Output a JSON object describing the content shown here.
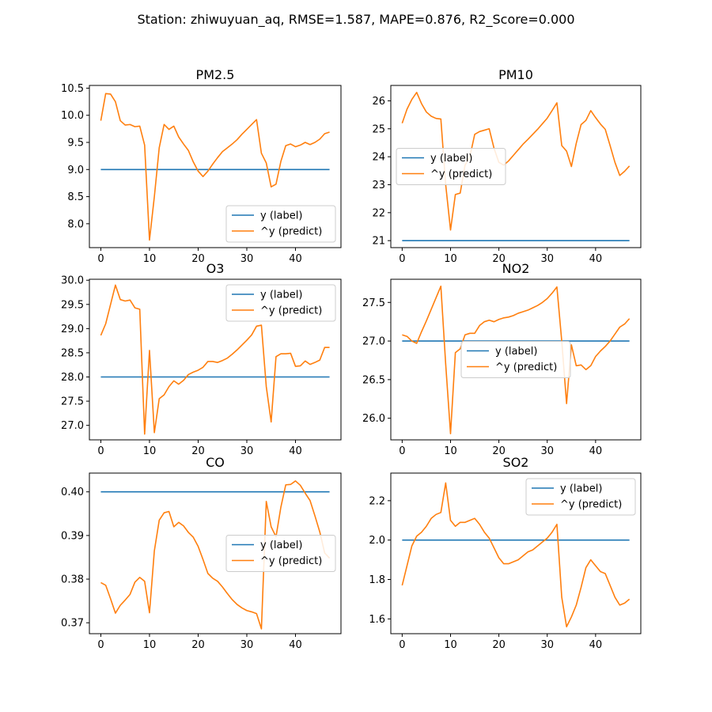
{
  "figure": {
    "title": "Station: zhiwuyuan_aq, RMSE=1.587, MAPE=0.876, R2_Score=0.000"
  },
  "colors": {
    "label": "#1f77b4",
    "predict": "#ff7f0e"
  },
  "chart_data": [
    {
      "type": "line",
      "title": "PM2.5",
      "xlim": [
        -2.35,
        49.35
      ],
      "ylim": [
        7.56,
        10.55
      ],
      "xticks": [
        0,
        10,
        20,
        30,
        40
      ],
      "yticks": [
        8.0,
        8.5,
        9.0,
        9.5,
        10.0,
        10.5
      ],
      "ydecimals": 1,
      "legend": "lower right",
      "series": [
        {
          "name": "y (label)",
          "color": "#1f77b4",
          "x": [
            0,
            47
          ],
          "y": [
            9.0,
            9.0
          ]
        },
        {
          "name": "^y (predict)",
          "color": "#ff7f0e",
          "y": [
            9.9,
            10.4,
            10.39,
            10.25,
            9.9,
            9.82,
            9.83,
            9.79,
            9.8,
            9.45,
            7.7,
            8.5,
            9.4,
            9.83,
            9.74,
            9.8,
            9.6,
            9.47,
            9.35,
            9.14,
            8.97,
            8.87,
            8.97,
            9.1,
            9.22,
            9.33,
            9.4,
            9.47,
            9.55,
            9.65,
            9.74,
            9.83,
            9.92,
            9.3,
            9.12,
            8.68,
            8.73,
            9.15,
            9.44,
            9.47,
            9.42,
            9.45,
            9.5,
            9.46,
            9.5,
            9.56,
            9.66,
            9.69
          ]
        }
      ]
    },
    {
      "type": "line",
      "title": "PM10",
      "xlim": [
        -2.35,
        49.35
      ],
      "ylim": [
        20.75,
        26.55
      ],
      "xticks": [
        0,
        10,
        20,
        30,
        40
      ],
      "yticks": [
        21,
        22,
        23,
        24,
        25,
        26
      ],
      "ydecimals": 0,
      "legend": "center left",
      "series": [
        {
          "name": "y (label)",
          "color": "#1f77b4",
          "x": [
            0,
            47
          ],
          "y": [
            21.0,
            21.0
          ]
        },
        {
          "name": "^y (predict)",
          "color": "#ff7f0e",
          "y": [
            25.2,
            25.7,
            26.05,
            26.3,
            25.9,
            25.6,
            25.45,
            25.37,
            25.35,
            23.0,
            21.38,
            22.65,
            22.7,
            23.7,
            24.0,
            24.8,
            24.9,
            24.95,
            25.0,
            24.3,
            23.8,
            23.7,
            23.85,
            24.05,
            24.25,
            24.45,
            24.62,
            24.8,
            24.98,
            25.18,
            25.38,
            25.65,
            25.93,
            24.4,
            24.2,
            23.65,
            24.48,
            25.15,
            25.3,
            25.65,
            25.4,
            25.17,
            24.98,
            24.4,
            23.8,
            23.33,
            23.48,
            23.67
          ]
        }
      ]
    },
    {
      "type": "line",
      "title": "O3",
      "xlim": [
        -2.35,
        49.35
      ],
      "ylim": [
        26.7,
        30.02
      ],
      "xticks": [
        0,
        10,
        20,
        30,
        40
      ],
      "yticks": [
        27.0,
        27.5,
        28.0,
        28.5,
        29.0,
        29.5,
        30.0
      ],
      "ydecimals": 1,
      "legend": "upper right",
      "series": [
        {
          "name": "y (label)",
          "color": "#1f77b4",
          "x": [
            0,
            47
          ],
          "y": [
            28.0,
            28.0
          ]
        },
        {
          "name": "^y (predict)",
          "color": "#ff7f0e",
          "y": [
            28.86,
            29.1,
            29.5,
            29.9,
            29.6,
            29.57,
            29.59,
            29.43,
            29.4,
            26.82,
            28.55,
            26.85,
            27.55,
            27.63,
            27.8,
            27.92,
            27.85,
            27.93,
            28.05,
            28.1,
            28.14,
            28.2,
            28.32,
            28.32,
            28.3,
            28.34,
            28.39,
            28.47,
            28.56,
            28.66,
            28.76,
            28.87,
            29.05,
            29.07,
            27.8,
            27.07,
            28.42,
            28.48,
            28.48,
            28.49,
            28.22,
            28.23,
            28.33,
            28.26,
            28.3,
            28.35,
            28.61,
            28.61
          ]
        }
      ]
    },
    {
      "type": "line",
      "title": "NO2",
      "xlim": [
        -2.35,
        49.35
      ],
      "ylim": [
        25.72,
        27.8
      ],
      "xticks": [
        0,
        10,
        20,
        30,
        40
      ],
      "yticks": [
        26.0,
        26.5,
        27.0,
        27.5
      ],
      "ydecimals": 1,
      "legend": "center",
      "series": [
        {
          "name": "y (label)",
          "color": "#1f77b4",
          "x": [
            0,
            47
          ],
          "y": [
            27.0,
            27.0
          ]
        },
        {
          "name": "^y (predict)",
          "color": "#ff7f0e",
          "y": [
            27.08,
            27.06,
            27.0,
            26.97,
            27.12,
            27.26,
            27.41,
            27.56,
            27.71,
            26.7,
            25.8,
            26.85,
            26.9,
            27.08,
            27.1,
            27.1,
            27.2,
            27.25,
            27.27,
            27.25,
            27.28,
            27.3,
            27.31,
            27.33,
            27.36,
            27.38,
            27.4,
            27.43,
            27.46,
            27.5,
            27.55,
            27.62,
            27.7,
            27.0,
            26.19,
            26.95,
            26.68,
            26.69,
            26.63,
            26.68,
            26.8,
            26.87,
            26.93,
            27.0,
            27.09,
            27.18,
            27.22,
            27.29
          ]
        }
      ]
    },
    {
      "type": "line",
      "title": "CO",
      "xlim": [
        -2.35,
        49.35
      ],
      "ylim": [
        0.3675,
        0.4043
      ],
      "xticks": [
        0,
        10,
        20,
        30,
        40
      ],
      "yticks": [
        0.37,
        0.38,
        0.39,
        0.4
      ],
      "ydecimals": 2,
      "legend": "center right",
      "series": [
        {
          "name": "y (label)",
          "color": "#1f77b4",
          "x": [
            0,
            47
          ],
          "y": [
            0.4,
            0.4
          ]
        },
        {
          "name": "^y (predict)",
          "color": "#ff7f0e",
          "y": [
            0.3792,
            0.3786,
            0.3755,
            0.3722,
            0.374,
            0.3752,
            0.3765,
            0.3793,
            0.3804,
            0.3795,
            0.3723,
            0.3865,
            0.3935,
            0.3952,
            0.3955,
            0.392,
            0.393,
            0.3922,
            0.3907,
            0.3896,
            0.3875,
            0.3845,
            0.3813,
            0.3802,
            0.3795,
            0.3782,
            0.3767,
            0.3753,
            0.3742,
            0.3734,
            0.3728,
            0.3725,
            0.3721,
            0.3686,
            0.3978,
            0.392,
            0.3897,
            0.3965,
            0.4016,
            0.4017,
            0.4025,
            0.4015,
            0.3997,
            0.398,
            0.3945,
            0.3908,
            0.386,
            0.3848
          ]
        }
      ]
    },
    {
      "type": "line",
      "title": "SO2",
      "xlim": [
        -2.35,
        49.35
      ],
      "ylim": [
        1.525,
        2.34
      ],
      "xticks": [
        0,
        10,
        20,
        30,
        40
      ],
      "yticks": [
        1.6,
        1.8,
        2.0,
        2.2
      ],
      "ydecimals": 1,
      "legend": "upper right",
      "series": [
        {
          "name": "y (label)",
          "color": "#1f77b4",
          "x": [
            0,
            47
          ],
          "y": [
            2.0,
            2.0
          ]
        },
        {
          "name": "^y (predict)",
          "color": "#ff7f0e",
          "y": [
            1.77,
            1.87,
            1.97,
            2.02,
            2.04,
            2.07,
            2.11,
            2.13,
            2.14,
            2.29,
            2.1,
            2.07,
            2.09,
            2.09,
            2.1,
            2.11,
            2.08,
            2.04,
            2.01,
            1.96,
            1.91,
            1.88,
            1.88,
            1.89,
            1.9,
            1.92,
            1.94,
            1.95,
            1.97,
            1.99,
            2.01,
            2.04,
            2.08,
            1.71,
            1.56,
            1.61,
            1.67,
            1.76,
            1.86,
            1.9,
            1.87,
            1.84,
            1.83,
            1.77,
            1.71,
            1.67,
            1.68,
            1.7
          ]
        }
      ]
    }
  ]
}
